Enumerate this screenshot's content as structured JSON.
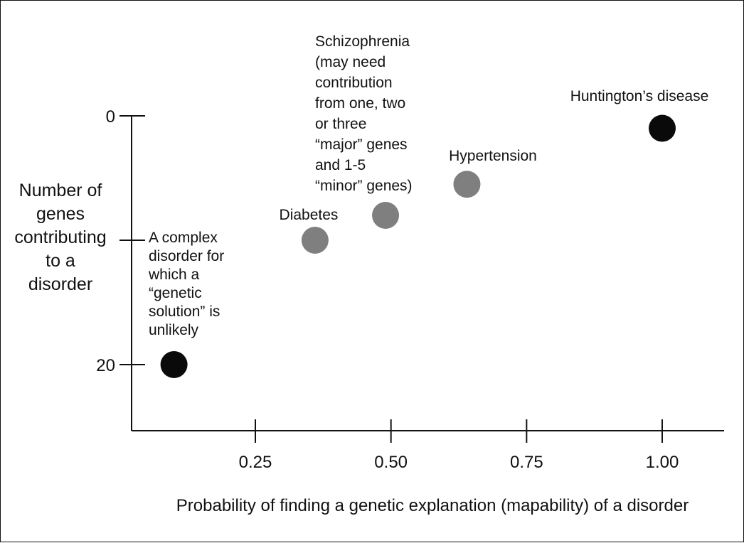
{
  "chart_data": {
    "type": "scatter",
    "title": "",
    "xlabel": "Probability of finding a genetic explanation (mapability) of a disorder",
    "ylabel": "Number of genes contributing to a disorder",
    "y_inverted": true,
    "xlim": [
      0.02,
      1.1
    ],
    "ylim": [
      0,
      25
    ],
    "x_ticks": [
      {
        "value": 0.25,
        "label": "0.25"
      },
      {
        "value": 0.5,
        "label": "0.50"
      },
      {
        "value": 0.75,
        "label": "0.75"
      },
      {
        "value": 1.0,
        "label": "1.00"
      }
    ],
    "y_ticks": [
      {
        "value": 0,
        "label": "0"
      },
      {
        "value": 10,
        "label": ""
      },
      {
        "value": 20,
        "label": "20"
      }
    ],
    "grid": false,
    "legend": "none",
    "colors": {
      "black": "#0a0a0a",
      "gray": "#7f7f7f"
    },
    "points": [
      {
        "x": 0.1,
        "y": 20,
        "color": "black",
        "label": [
          "A complex",
          "disorder for",
          "which a",
          "“genetic",
          "solution” is",
          "unlikely"
        ]
      },
      {
        "x": 0.36,
        "y": 10,
        "color": "gray",
        "label": [
          "Diabetes"
        ]
      },
      {
        "x": 0.49,
        "y": 8,
        "color": "gray",
        "label": [
          "Schizophrenia",
          "(may need",
          "contribution",
          "from one, two",
          "or three",
          "“major” genes",
          "and 1-5",
          "“minor” genes)"
        ]
      },
      {
        "x": 0.64,
        "y": 5.5,
        "color": "gray",
        "label": [
          "Hypertension"
        ]
      },
      {
        "x": 1.0,
        "y": 1,
        "color": "black",
        "label": [
          "Huntington’s disease"
        ]
      }
    ]
  }
}
